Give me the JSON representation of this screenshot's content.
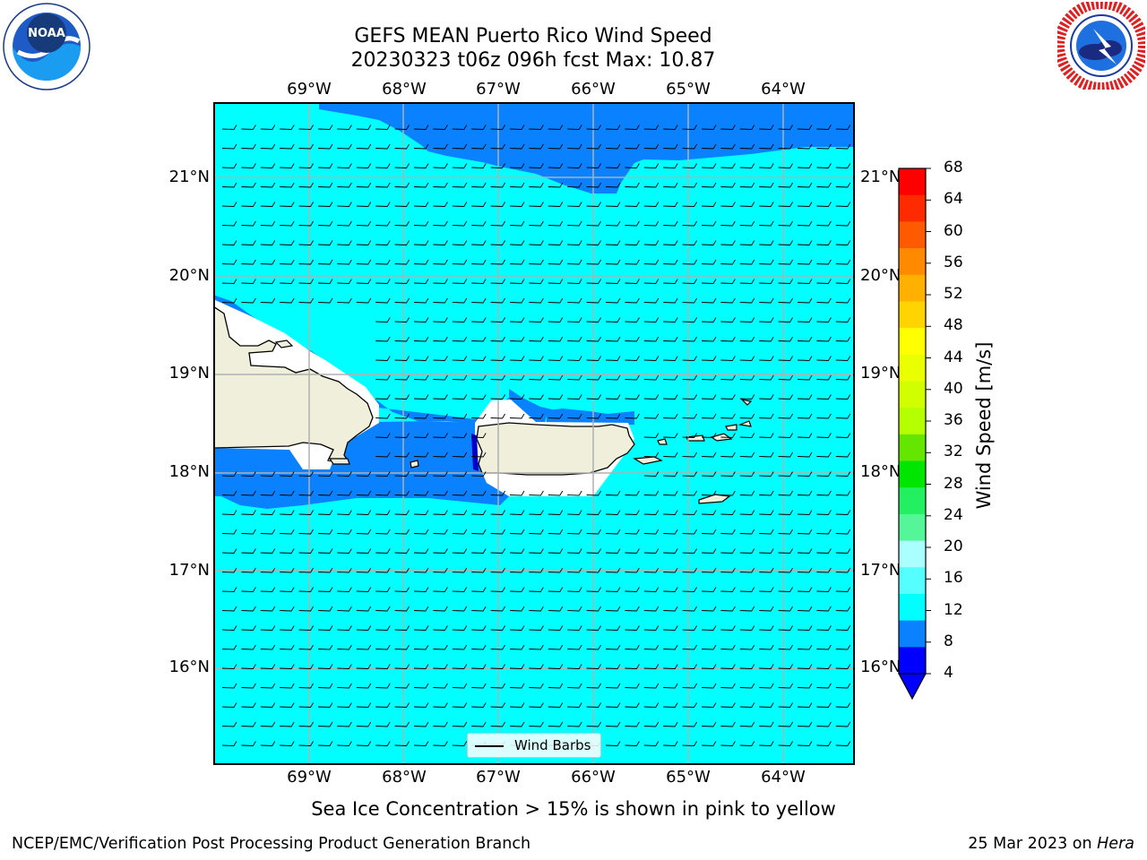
{
  "title": {
    "line1": "GEFS MEAN Puerto Rico Wind Speed",
    "line2": "20230323 t06z 096h fcst   Max: 10.87"
  },
  "logos": {
    "left": "NOAA",
    "right": "NATIONAL WEATHER SERVICE"
  },
  "map": {
    "lon_labels": [
      "69°W",
      "68°W",
      "67°W",
      "66°W",
      "65°W",
      "64°W"
    ],
    "lat_labels": [
      "21°N",
      "20°N",
      "19°N",
      "18°N",
      "17°N",
      "16°N"
    ],
    "extent": {
      "lon": [
        -70.0,
        -63.25
      ],
      "lat": [
        15.0,
        21.75
      ]
    },
    "colors": {
      "ocean": "#00ffff",
      "band": "#0a82ff",
      "land": "#efefdc",
      "grid": "#b0b0b0"
    }
  },
  "colorbar": {
    "label": "Wind Speed [m/s]",
    "ticks": [
      "68",
      "64",
      "60",
      "56",
      "52",
      "48",
      "44",
      "40",
      "36",
      "32",
      "28",
      "24",
      "20",
      "16",
      "12",
      "8",
      "4"
    ],
    "colors_top_to_bottom": [
      "#ff0000",
      "#ff2a00",
      "#ff5a00",
      "#ff8a00",
      "#ffb000",
      "#ffd400",
      "#ffff00",
      "#eaff00",
      "#d2ff00",
      "#b4ff00",
      "#64e600",
      "#00e600",
      "#22f060",
      "#55f59a",
      "#aaffff",
      "#55ffff",
      "#00ffff",
      "#0a82ff",
      "#0000ff"
    ]
  },
  "legend": {
    "label": "Wind Barbs"
  },
  "footer": {
    "sea_ice": "Sea Ice Concentration > 15% is shown in pink to yellow",
    "branch": "NCEP/EMC/Verification Post Processing Product Generation Branch",
    "date": "25 Mar 2023 on ",
    "host": "Hera"
  }
}
